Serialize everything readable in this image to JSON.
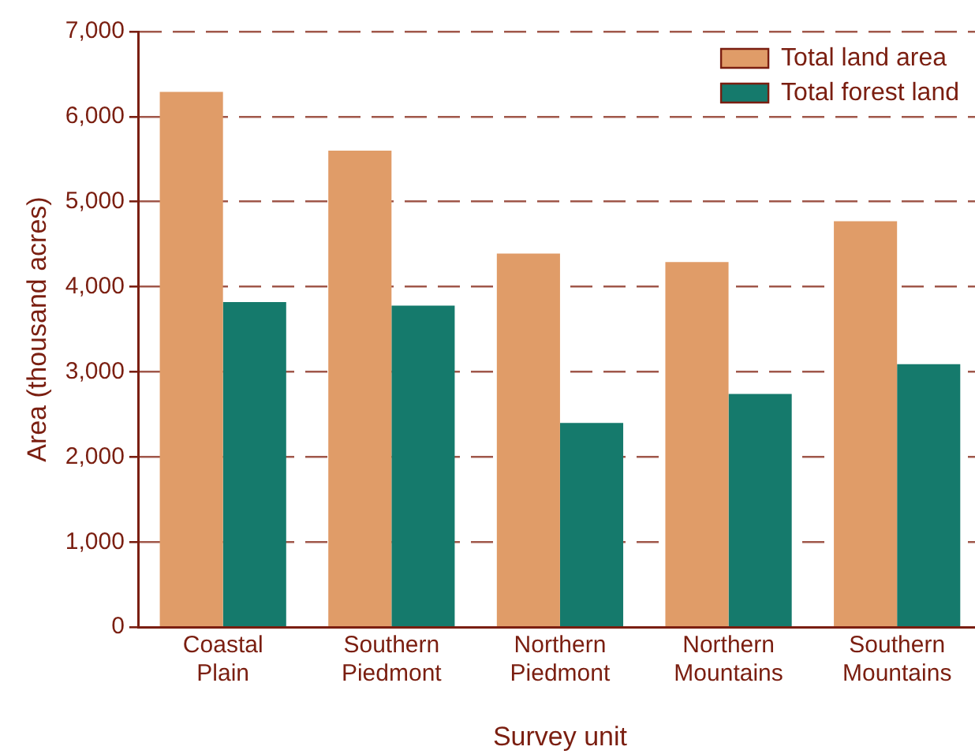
{
  "chart_data": {
    "type": "bar",
    "xlabel": "Survey unit",
    "ylabel": "Area (thousand acres)",
    "categories": [
      "Coastal Plain",
      "Southern Piedmont",
      "Northern Piedmont",
      "Northern Mountains",
      "Southern Mountains"
    ],
    "series": [
      {
        "name": "Total land area",
        "color": "#e09c68",
        "values": [
          6290,
          5600,
          4390,
          4290,
          4770
        ]
      },
      {
        "name": "Total forest land",
        "color": "#157a6c",
        "values": [
          3820,
          3780,
          2400,
          2740,
          3090
        ]
      }
    ],
    "ylim": [
      0,
      7000
    ],
    "yticks": [
      0,
      {
        "value": 1000,
        "label": "1,000"
      },
      {
        "value": 2000,
        "label": "2,000"
      },
      {
        "value": 3000,
        "label": "3,000"
      },
      {
        "value": 4000,
        "label": "4,000"
      },
      {
        "value": 5000,
        "label": "5,000"
      },
      {
        "value": 6000,
        "label": "6,000"
      },
      {
        "value": 7000,
        "label": "7,000"
      }
    ],
    "grid": "y",
    "legend": "top right"
  }
}
